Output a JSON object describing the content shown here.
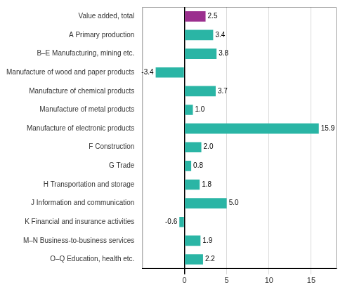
{
  "chart_data": {
    "type": "bar",
    "orientation": "horizontal",
    "categories": [
      "O–Q Education, health etc.",
      "M–N Business-to-business services",
      "K Financial and insurance activities",
      "J Information and communication",
      "H Transportation and storage",
      "G Trade",
      "F Construction",
      "Manufacture of electronic products",
      "Manufacture of metal products",
      "Manufacture of chemical products",
      "Manufacture of wood and paper products",
      "B–E Manufacturing, mining etc.",
      "A Primary production",
      "Value added, total"
    ],
    "values": [
      2.2,
      1.9,
      -0.6,
      5.0,
      1.8,
      0.8,
      2.0,
      15.9,
      1.0,
      3.7,
      -3.4,
      3.8,
      3.4,
      2.5
    ],
    "value_labels": [
      "2.2",
      "1.9",
      "-0.6",
      "5.0",
      "1.8",
      "0.8",
      "2.0",
      "15.9",
      "1.0",
      "3.7",
      "-3.4",
      "3.8",
      "3.4",
      "2.5"
    ],
    "colors": [
      "#2ab5a5",
      "#2ab5a5",
      "#2ab5a5",
      "#2ab5a5",
      "#2ab5a5",
      "#2ab5a5",
      "#2ab5a5",
      "#2ab5a5",
      "#2ab5a5",
      "#2ab5a5",
      "#2ab5a5",
      "#2ab5a5",
      "#2ab5a5",
      "#9b2f8e"
    ],
    "xlim": [
      -5,
      18
    ],
    "xticks": [
      0,
      5,
      10,
      15
    ],
    "grid": true,
    "data_labels": true
  }
}
